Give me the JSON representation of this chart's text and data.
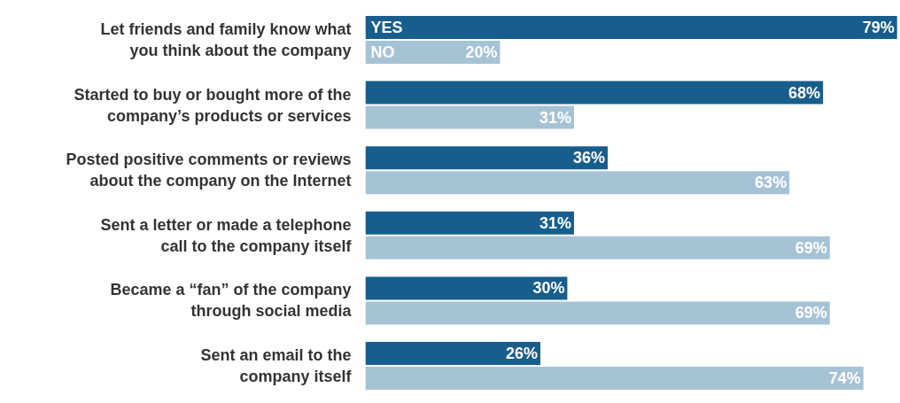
{
  "chart_data": {
    "type": "bar",
    "orientation": "horizontal",
    "data_labels": true,
    "legend": false,
    "grid": false,
    "tick_labels": "y",
    "categories": [
      "Let friends and family know what\nyou think about the company",
      "Started to buy or bought more of the\ncompany’s products or services",
      "Posted positive comments or reviews\nabout the company on the Internet",
      "Sent a letter or made a telephone\ncall to the company itself",
      "Became a “fan” of the company\nthrough social media",
      "Sent an email to the\ncompany itself"
    ],
    "series": [
      {
        "name": "YES",
        "color": "#175e8c",
        "values": [
          79,
          68,
          36,
          31,
          30,
          26
        ],
        "value_labels": [
          "79%",
          "68%",
          "36%",
          "31%",
          "30%",
          "26%"
        ]
      },
      {
        "name": "NO",
        "color": "#a6c3d6",
        "values": [
          20,
          31,
          63,
          69,
          69,
          74
        ],
        "value_labels": [
          "20%",
          "31%",
          "63%",
          "69%",
          "69%",
          "74%"
        ]
      }
    ]
  }
}
